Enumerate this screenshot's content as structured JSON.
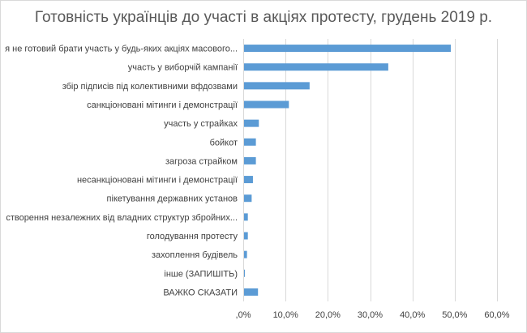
{
  "chart_data": {
    "type": "bar",
    "orientation": "horizontal",
    "title": "Готовність українців до участі в акціях протесту, грудень 2019 р.",
    "categories": [
      "я не готовий брати участь у будь-яких акціях масового...",
      "участь у виборчій кампанії",
      "збір підписів під колективними вфдозвами",
      "санкціоновані мітинги і демонстрації",
      "участь у страйках",
      "бойкот",
      "загроза страйком",
      "несанкціоновані мітинги і демонстрації",
      "пікетування державних установ",
      "створення незалежних від владних структур збройних...",
      "голодування протесту",
      "захоплення будівель",
      "інше (ЗАПИШІТЬ)",
      "ВАЖКО СКАЗАТИ"
    ],
    "values": [
      48.9,
      34.1,
      15.5,
      10.6,
      3.5,
      2.8,
      2.8,
      2.1,
      1.8,
      0.9,
      0.9,
      0.7,
      0.2,
      3.3
    ],
    "xlim": [
      0,
      60
    ],
    "xticks": [
      ",0%",
      "10,0%",
      "20,0%",
      "30,0%",
      "40,0%",
      "50,0%",
      "60,0%"
    ],
    "tick_values": [
      0,
      10,
      20,
      30,
      40,
      50,
      60
    ],
    "xlabel": "",
    "ylabel": "",
    "grid": true,
    "legend": "none",
    "bar_color": "#5b9bd5"
  }
}
